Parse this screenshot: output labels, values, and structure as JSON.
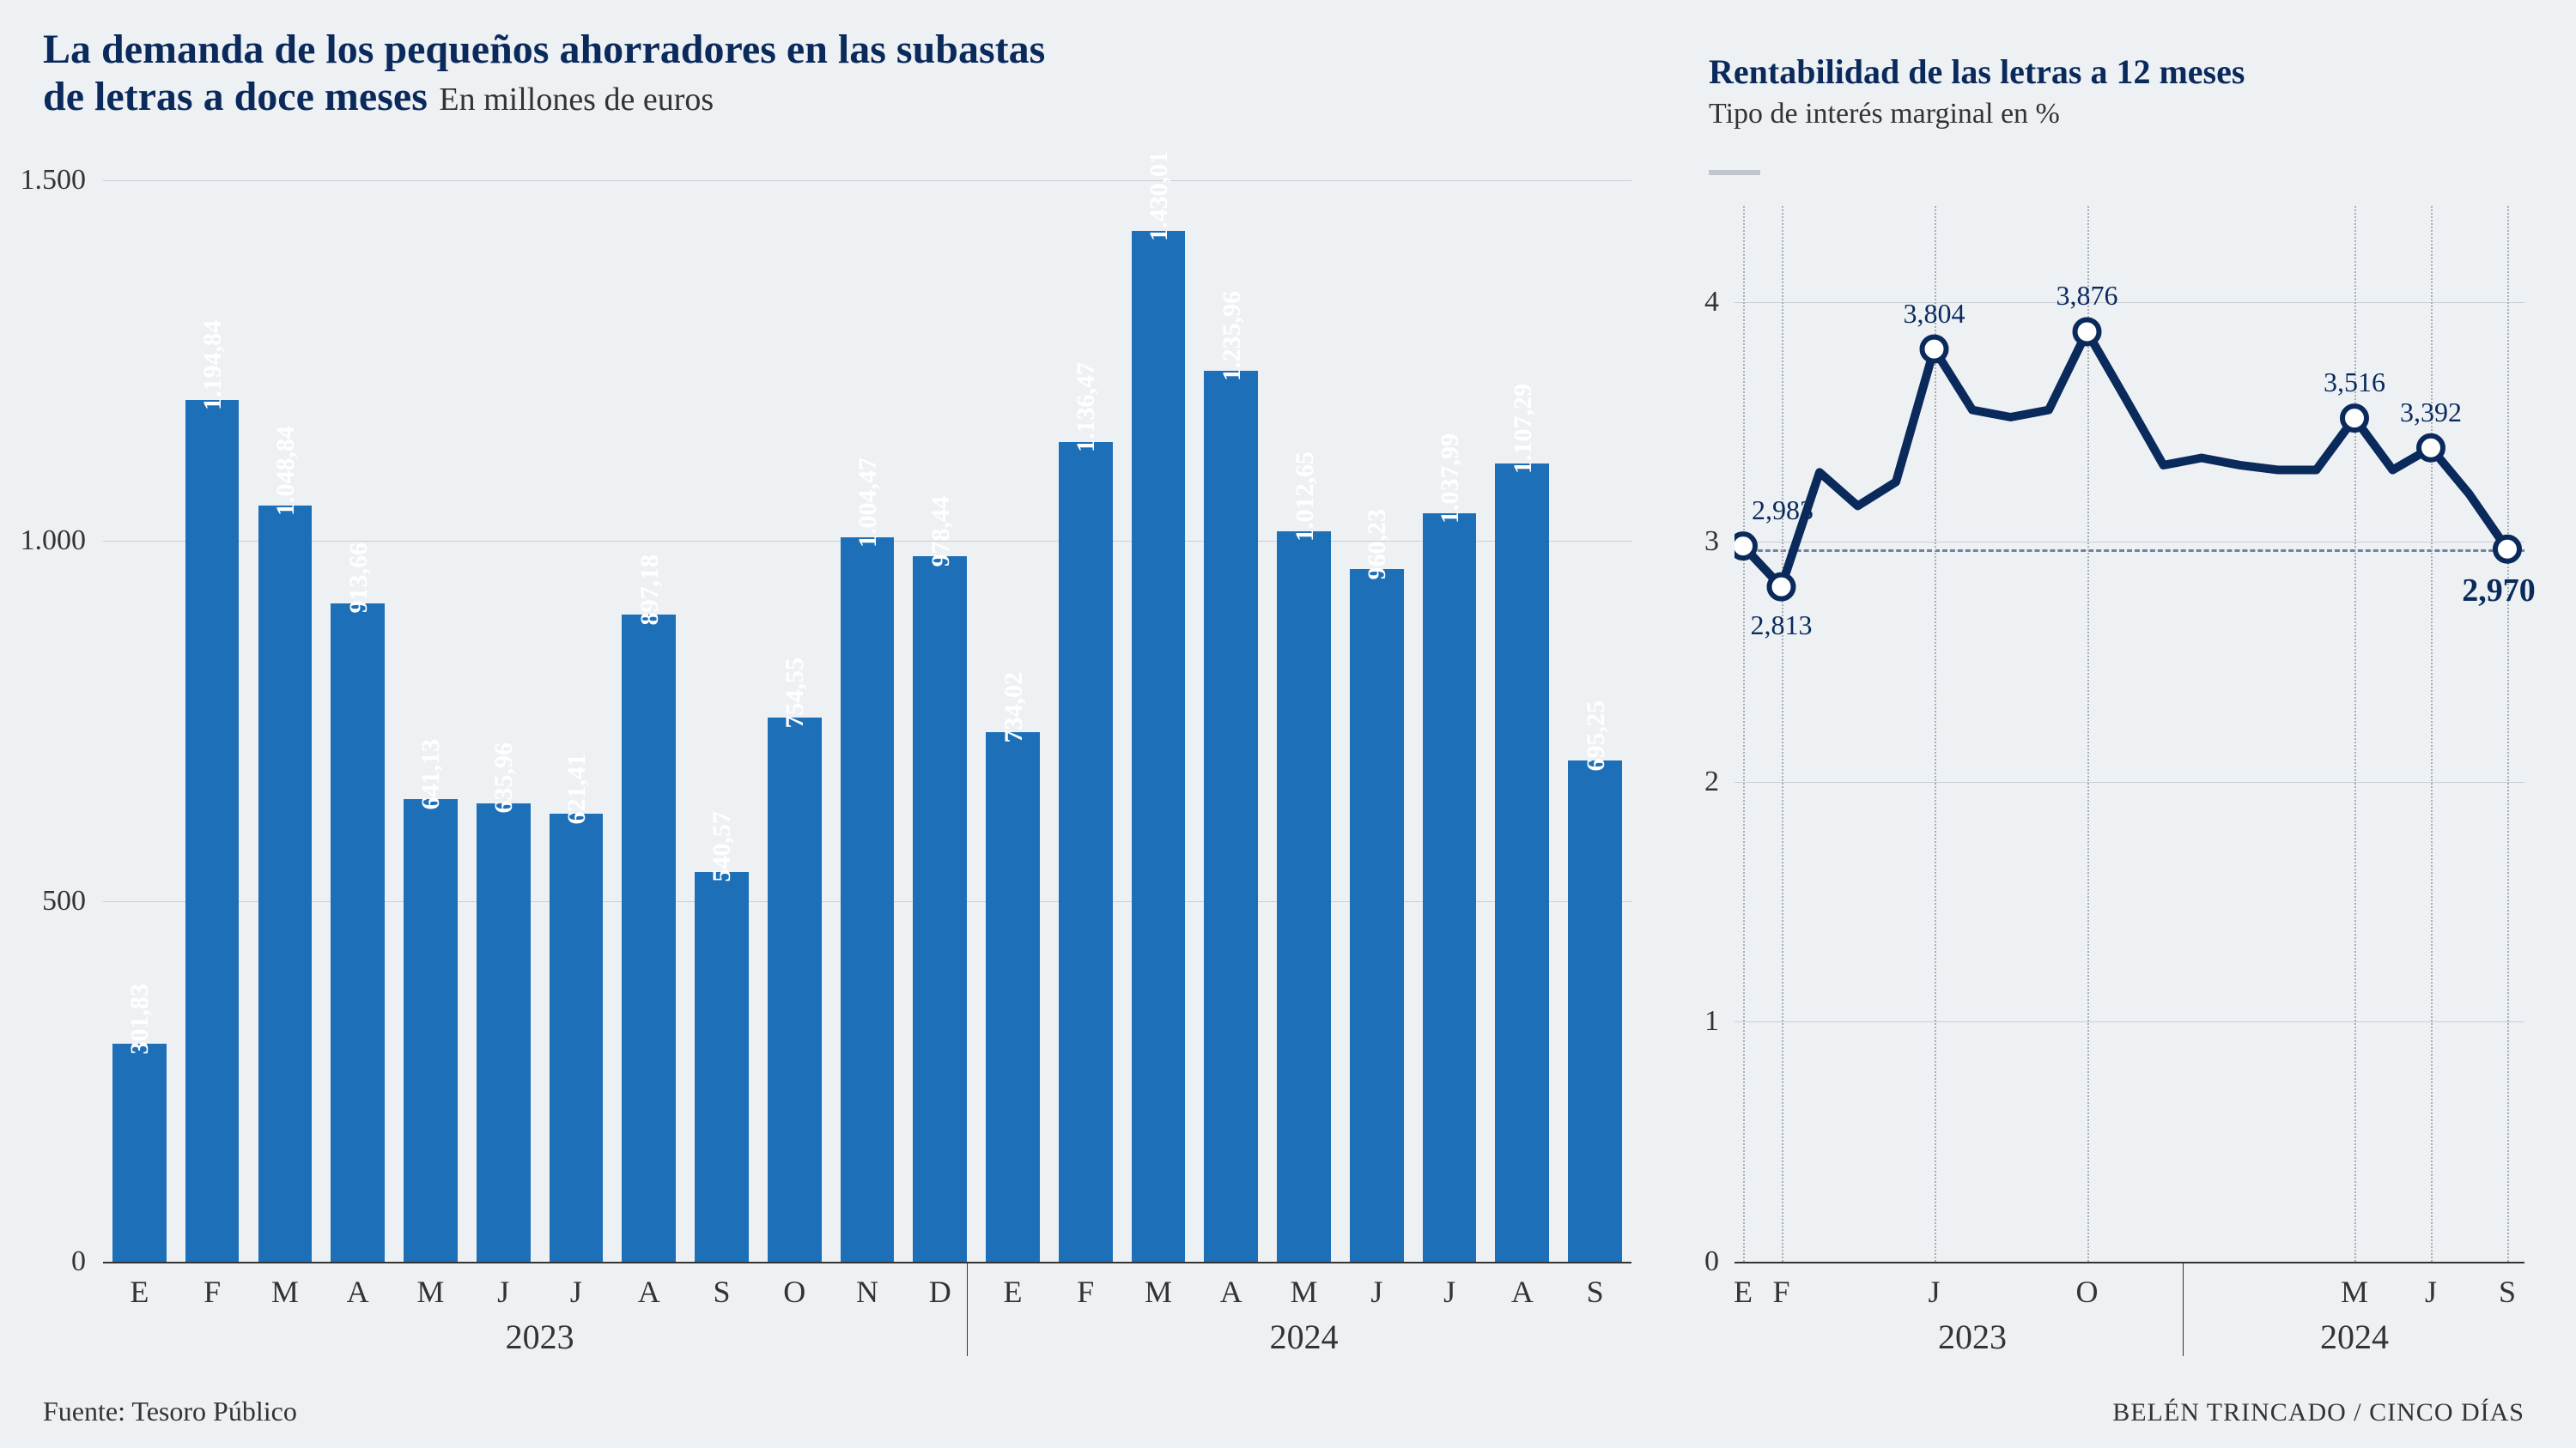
{
  "header": {
    "title_line1": "La demanda de los pequeños ahorradores en las subastas",
    "title_line2": "de letras a doce meses",
    "subtitle": "En millones de euros"
  },
  "right_header": {
    "title": "Rentabilidad de las letras a 12 meses",
    "subtitle": "Tipo de interés marginal en %"
  },
  "bar_chart": {
    "type": "bar",
    "y_max": 1500,
    "y_ticks": [
      0,
      500,
      1000,
      1500
    ],
    "y_tick_labels": [
      "0",
      "500",
      "1.000",
      "1.500"
    ],
    "bar_color": "#1d6fb8",
    "bar_width_ratio": 0.74,
    "background_color": "#eef1f4",
    "grid_color": "#c9ced5",
    "text_color": "#0a2a5c",
    "years": [
      {
        "label": "2023",
        "start_index": 0,
        "end_index": 11
      },
      {
        "label": "2024",
        "start_index": 12,
        "end_index": 20
      }
    ],
    "months": [
      "E",
      "F",
      "M",
      "A",
      "M",
      "J",
      "J",
      "A",
      "S",
      "O",
      "N",
      "D",
      "E",
      "F",
      "M",
      "A",
      "M",
      "J",
      "J",
      "A",
      "S"
    ],
    "values": [
      301.83,
      1194.84,
      1048.84,
      913.66,
      641.13,
      635.96,
      621.41,
      897.18,
      540.57,
      754.55,
      1004.47,
      978.44,
      734.02,
      1136.47,
      1430.01,
      1235.96,
      1012.65,
      960.23,
      1037.99,
      1107.29,
      695.25
    ],
    "value_labels": [
      "301,83",
      "1.194,84",
      "1.048,84",
      "913,66",
      "641,13",
      "635,96",
      "621,41",
      "897,18",
      "540,57",
      "754,55",
      "1.004,47",
      "978,44",
      "734,02",
      "1.136,47",
      "1.430,01",
      "1.235,96",
      "1.012,65",
      "960,23",
      "1.037,99",
      "1.107,29",
      "695,25"
    ]
  },
  "line_chart": {
    "type": "line",
    "y_min": 0,
    "y_max": 4.4,
    "y_ticks": [
      0,
      1,
      2,
      3,
      4
    ],
    "line_color": "#0a2a5c",
    "line_width": 10,
    "marker_fill": "#ffffff",
    "marker_stroke": "#0a2a5c",
    "marker_radius": 14,
    "grid_color": "#c9ced5",
    "background_color": "#eef1f4",
    "n_points": 21,
    "values": [
      2.983,
      2.813,
      3.29,
      3.15,
      3.25,
      3.804,
      3.55,
      3.52,
      3.55,
      3.876,
      3.6,
      3.32,
      3.35,
      3.32,
      3.3,
      3.3,
      3.516,
      3.3,
      3.392,
      3.2,
      2.97
    ],
    "markers": [
      {
        "i": 0,
        "label": "2,983",
        "label_pos": "above"
      },
      {
        "i": 1,
        "label": "2,813",
        "label_pos": "below"
      },
      {
        "i": 5,
        "label": "3,804",
        "label_pos": "above"
      },
      {
        "i": 9,
        "label": "3,876",
        "label_pos": "above"
      },
      {
        "i": 16,
        "label": "3,516",
        "label_pos": "above"
      },
      {
        "i": 18,
        "label": "3,392",
        "label_pos": "above"
      },
      {
        "i": 20,
        "label": "2,970",
        "label_pos": "below",
        "bold": true
      }
    ],
    "x_ticks": [
      {
        "i": 0,
        "label": "E"
      },
      {
        "i": 1,
        "label": "F"
      },
      {
        "i": 5,
        "label": "J"
      },
      {
        "i": 9,
        "label": "O"
      },
      {
        "i": 16,
        "label": "M"
      },
      {
        "i": 18,
        "label": "J"
      },
      {
        "i": 20,
        "label": "S"
      }
    ],
    "years": [
      {
        "label": "2023",
        "center_i": 6
      },
      {
        "label": "2024",
        "center_i": 16
      }
    ],
    "year_sep_i": 11.5
  },
  "footer": {
    "source": "Fuente: Tesoro Público",
    "credit": "BELÉN TRINCADO / CINCO DÍAS"
  }
}
